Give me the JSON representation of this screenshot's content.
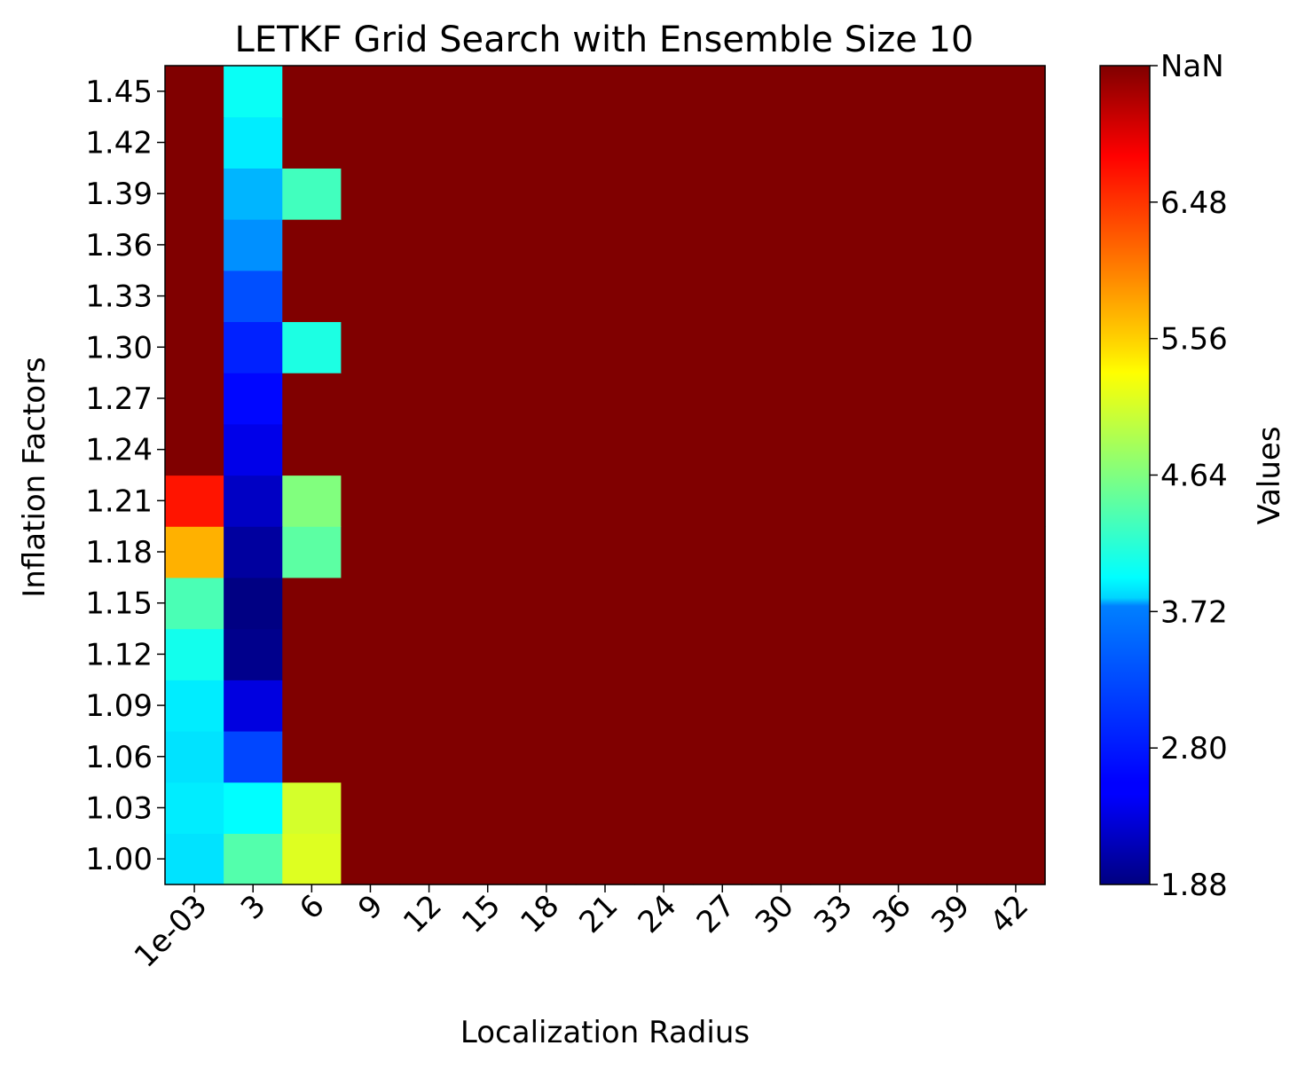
{
  "chart_data": {
    "type": "heatmap",
    "title": "LETKF Grid Search with Ensemble Size 10",
    "xlabel": "Localization Radius",
    "ylabel": "Inflation Factors",
    "x_categories": [
      "1e-03",
      "3",
      "6",
      "9",
      "12",
      "15",
      "18",
      "21",
      "24",
      "27",
      "30",
      "33",
      "36",
      "39",
      "42"
    ],
    "y_categories": [
      "1.00",
      "1.03",
      "1.06",
      "1.09",
      "1.12",
      "1.15",
      "1.18",
      "1.21",
      "1.24",
      "1.27",
      "1.30",
      "1.33",
      "1.36",
      "1.39",
      "1.42",
      "1.45"
    ],
    "values": [
      [
        3.8,
        4.4,
        5.15,
        null,
        null,
        null,
        null,
        null,
        null,
        null,
        null,
        null,
        null,
        null,
        null
      ],
      [
        3.85,
        3.95,
        5.1,
        null,
        null,
        null,
        null,
        null,
        null,
        null,
        null,
        null,
        null,
        null,
        null
      ],
      [
        3.8,
        2.95,
        null,
        null,
        null,
        null,
        null,
        null,
        null,
        null,
        null,
        null,
        null,
        null,
        null
      ],
      [
        3.85,
        2.4,
        null,
        null,
        null,
        null,
        null,
        null,
        null,
        null,
        null,
        null,
        null,
        null,
        null
      ],
      [
        4.05,
        1.95,
        null,
        null,
        null,
        null,
        null,
        null,
        null,
        null,
        null,
        null,
        null,
        null,
        null
      ],
      [
        4.35,
        1.9,
        null,
        null,
        null,
        null,
        null,
        null,
        null,
        null,
        null,
        null,
        null,
        null,
        null
      ],
      [
        5.75,
        2.05,
        4.45,
        null,
        null,
        null,
        null,
        null,
        null,
        null,
        null,
        null,
        null,
        null,
        null
      ],
      [
        6.6,
        2.25,
        4.65,
        null,
        null,
        null,
        null,
        null,
        null,
        null,
        null,
        null,
        null,
        null,
        null
      ],
      [
        null,
        2.45,
        null,
        null,
        null,
        null,
        null,
        null,
        null,
        null,
        null,
        null,
        null,
        null,
        null
      ],
      [
        null,
        2.6,
        null,
        null,
        null,
        null,
        null,
        null,
        null,
        null,
        null,
        null,
        null,
        null,
        null
      ],
      [
        null,
        2.75,
        4.1,
        null,
        null,
        null,
        null,
        null,
        null,
        null,
        null,
        null,
        null,
        null,
        null
      ],
      [
        null,
        3.0,
        null,
        null,
        null,
        null,
        null,
        null,
        null,
        null,
        null,
        null,
        null,
        null,
        null
      ],
      [
        null,
        3.35,
        null,
        null,
        null,
        null,
        null,
        null,
        null,
        null,
        null,
        null,
        null,
        null,
        null
      ],
      [
        null,
        3.55,
        4.3,
        null,
        null,
        null,
        null,
        null,
        null,
        null,
        null,
        null,
        null,
        null,
        null
      ],
      [
        null,
        3.85,
        null,
        null,
        null,
        null,
        null,
        null,
        null,
        null,
        null,
        null,
        null,
        null,
        null
      ],
      [
        null,
        4.0,
        null,
        null,
        null,
        null,
        null,
        null,
        null,
        null,
        null,
        null,
        null,
        null,
        null
      ]
    ],
    "nan_color": "#800000",
    "colormap": "jet",
    "vmin": 1.88,
    "vmax": 7.4,
    "colorbar": {
      "label": "Values",
      "ticks": [
        1.88,
        2.8,
        3.72,
        4.64,
        5.56,
        6.48
      ],
      "tick_labels": [
        "1.88",
        "2.80",
        "3.72",
        "4.64",
        "5.56",
        "6.48",
        "NaN"
      ]
    }
  }
}
